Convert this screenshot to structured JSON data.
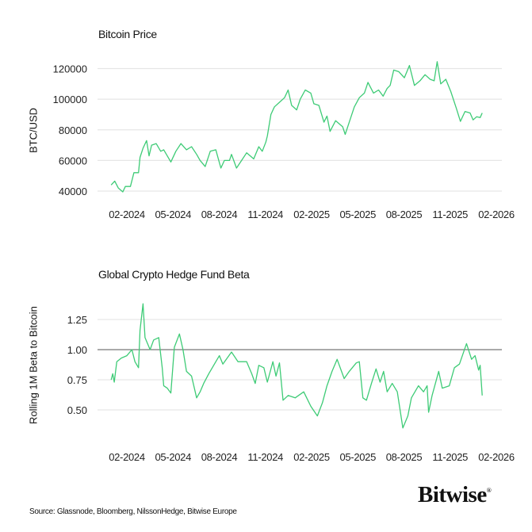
{
  "chart_data": [
    {
      "type": "line",
      "title": "Bitcoin Price",
      "ylabel": "BTC/USD",
      "xlabel": "",
      "xticks": [
        "02-2024",
        "05-2024",
        "08-2024",
        "11-2024",
        "02-2025",
        "05-2025",
        "08-2025",
        "11-2025",
        "02-2026"
      ],
      "yticks": [
        40000,
        60000,
        80000,
        100000,
        120000
      ],
      "ylim": [
        40000,
        120000
      ],
      "grid": true,
      "line_color": "#3ecb76",
      "series": [
        {
          "x": [
            "2024-01-01",
            "2024-01-08",
            "2024-01-15",
            "2024-01-24",
            "2024-01-29",
            "2024-02-08",
            "2024-02-15",
            "2024-02-24",
            "2024-02-27",
            "2024-03-04",
            "2024-03-11",
            "2024-03-16",
            "2024-03-21",
            "2024-03-30",
            "2024-04-08",
            "2024-04-14",
            "2024-04-28",
            "2024-05-08",
            "2024-05-18",
            "2024-05-29",
            "2024-06-08",
            "2024-06-18",
            "2024-06-25",
            "2024-07-05",
            "2024-07-15",
            "2024-07-26",
            "2024-08-05",
            "2024-08-12",
            "2024-08-22",
            "2024-08-26",
            "2024-09-05",
            "2024-09-15",
            "2024-09-25",
            "2024-10-09",
            "2024-10-19",
            "2024-10-26",
            "2024-11-02",
            "2024-11-05",
            "2024-11-12",
            "2024-11-19",
            "2024-11-29",
            "2024-12-09",
            "2024-12-16",
            "2024-12-23",
            "2025-01-02",
            "2025-01-09",
            "2025-01-19",
            "2025-01-30",
            "2025-02-05",
            "2025-02-15",
            "2025-02-25",
            "2025-03-03",
            "2025-03-09",
            "2025-03-20",
            "2025-04-03",
            "2025-04-08",
            "2025-04-16",
            "2025-04-26",
            "2025-05-06",
            "2025-05-16",
            "2025-05-23",
            "2025-06-03",
            "2025-06-13",
            "2025-06-22",
            "2025-06-30",
            "2025-07-06",
            "2025-07-13",
            "2025-07-23",
            "2025-08-03",
            "2025-08-13",
            "2025-08-23",
            "2025-09-03",
            "2025-09-13",
            "2025-09-23",
            "2025-10-01",
            "2025-10-07",
            "2025-10-14",
            "2025-10-24",
            "2025-11-03",
            "2025-11-14",
            "2025-11-22",
            "2025-12-01",
            "2025-12-11",
            "2025-12-17",
            "2025-12-24",
            "2025-12-31",
            "2026-01-04"
          ],
          "y": [
            44000,
            46500,
            42000,
            39500,
            43000,
            43000,
            52000,
            52000,
            62000,
            68000,
            73000,
            63000,
            70000,
            71000,
            66000,
            67000,
            59000,
            66000,
            71000,
            67000,
            69000,
            64000,
            60000,
            56000,
            66000,
            67000,
            55000,
            60000,
            60000,
            64000,
            55000,
            60000,
            65000,
            61000,
            69000,
            66000,
            72000,
            76000,
            90000,
            95000,
            98000,
            101000,
            106000,
            96000,
            93000,
            100000,
            106000,
            104000,
            97000,
            96000,
            85000,
            89000,
            79000,
            86000,
            82000,
            77000,
            85000,
            95000,
            101000,
            104000,
            111000,
            104000,
            106000,
            102000,
            107000,
            109000,
            119000,
            118000,
            114000,
            122000,
            109000,
            112000,
            116000,
            113000,
            112000,
            124500,
            110000,
            113000,
            105000,
            94000,
            85500,
            92000,
            91000,
            86500,
            88500,
            88000,
            91000
          ]
        }
      ]
    },
    {
      "type": "line",
      "title": "Global Crypto Hedge Fund Beta",
      "ylabel": "Rolling 1M Beta to Bitcoin",
      "xlabel": "",
      "xticks": [
        "02-2024",
        "05-2024",
        "08-2024",
        "11-2024",
        "02-2025",
        "05-2025",
        "08-2025",
        "11-2025",
        "02-2026"
      ],
      "yticks": [
        "0.50",
        "0.75",
        "1.00",
        "1.25"
      ],
      "ylim": [
        0.3,
        1.4
      ],
      "grid": true,
      "reference_line": 1.0,
      "line_color": "#3ecb76",
      "series": [
        {
          "x": [
            "2024-01-01",
            "2024-01-04",
            "2024-01-07",
            "2024-01-12",
            "2024-01-21",
            "2024-02-01",
            "2024-02-11",
            "2024-02-17",
            "2024-02-24",
            "2024-02-27",
            "2024-03-04",
            "2024-03-08",
            "2024-03-18",
            "2024-03-25",
            "2024-04-04",
            "2024-04-11",
            "2024-04-14",
            "2024-04-21",
            "2024-04-28",
            "2024-05-05",
            "2024-05-15",
            "2024-05-22",
            "2024-05-29",
            "2024-06-08",
            "2024-06-18",
            "2024-06-25",
            "2024-07-02",
            "2024-07-12",
            "2024-07-26",
            "2024-08-02",
            "2024-08-09",
            "2024-08-26",
            "2024-09-08",
            "2024-09-25",
            "2024-10-05",
            "2024-10-12",
            "2024-10-19",
            "2024-10-29",
            "2024-11-05",
            "2024-11-16",
            "2024-11-22",
            "2024-11-29",
            "2024-12-06",
            "2024-12-16",
            "2024-12-30",
            "2025-01-16",
            "2025-01-30",
            "2025-02-12",
            "2025-02-22",
            "2025-03-03",
            "2025-03-13",
            "2025-03-23",
            "2025-04-06",
            "2025-04-16",
            "2025-04-30",
            "2025-05-06",
            "2025-05-13",
            "2025-05-20",
            "2025-05-30",
            "2025-06-08",
            "2025-06-16",
            "2025-06-23",
            "2025-06-30",
            "2025-07-10",
            "2025-07-20",
            "2025-07-31",
            "2025-08-10",
            "2025-08-17",
            "2025-08-31",
            "2025-09-10",
            "2025-09-17",
            "2025-09-20",
            "2025-09-27",
            "2025-10-10",
            "2025-10-17",
            "2025-10-31",
            "2025-11-10",
            "2025-11-20",
            "2025-12-04",
            "2025-12-14",
            "2025-12-21",
            "2025-12-28",
            "2025-12-31",
            "2026-01-04"
          ],
          "y": [
            0.75,
            0.8,
            0.73,
            0.9,
            0.93,
            0.95,
            1.0,
            0.9,
            0.85,
            1.16,
            1.38,
            1.1,
            1.0,
            1.08,
            1.1,
            0.85,
            0.7,
            0.68,
            0.64,
            1.02,
            1.13,
            1.0,
            0.82,
            0.78,
            0.6,
            0.65,
            0.72,
            0.8,
            0.9,
            0.95,
            0.88,
            0.98,
            0.9,
            0.9,
            0.8,
            0.72,
            0.87,
            0.85,
            0.73,
            0.9,
            0.78,
            0.89,
            0.58,
            0.62,
            0.6,
            0.65,
            0.53,
            0.45,
            0.56,
            0.7,
            0.82,
            0.92,
            0.76,
            0.82,
            0.89,
            0.9,
            0.6,
            0.58,
            0.72,
            0.84,
            0.73,
            0.82,
            0.65,
            0.72,
            0.65,
            0.35,
            0.45,
            0.6,
            0.7,
            0.65,
            0.7,
            0.48,
            0.62,
            0.82,
            0.68,
            0.7,
            0.85,
            0.88,
            1.05,
            0.92,
            0.95,
            0.83,
            0.87,
            0.62
          ]
        }
      ]
    }
  ],
  "footer": {
    "source": "Source: Glassnode, Bloomberg, NilssonHedge, Bitwise Europe",
    "logo": "Bitwise",
    "logo_mark": "®"
  }
}
